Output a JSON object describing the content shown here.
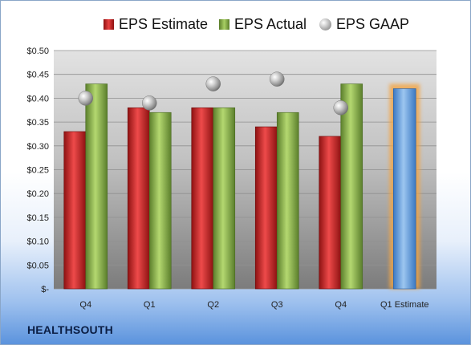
{
  "legend": {
    "estimate": "EPS Estimate",
    "actual": "EPS Actual",
    "gaap": "EPS GAAP"
  },
  "brand": "HEALTHSOUTH",
  "colors": {
    "estimate": "#c8202a",
    "actual": "#8db04a",
    "gaap": "#a8a8a8",
    "forecast": "#5f9bd8",
    "forecast_glow": "#f3a545"
  },
  "chart_data": {
    "type": "bar",
    "categories": [
      "Q4",
      "Q1",
      "Q2",
      "Q3",
      "Q4",
      "Q1 Estimate"
    ],
    "y_tick_labels": [
      "$-",
      "$0.05",
      "$0.10",
      "$0.15",
      "$0.20",
      "$0.25",
      "$0.30",
      "$0.35",
      "$0.40",
      "$0.45",
      "$0.50"
    ],
    "ylim": [
      0,
      0.5
    ],
    "grid": true,
    "legend_position": "top",
    "series": [
      {
        "name": "EPS Estimate",
        "kind": "bar",
        "values": [
          0.33,
          0.38,
          0.38,
          0.34,
          0.32,
          null
        ]
      },
      {
        "name": "EPS Actual",
        "kind": "bar",
        "values": [
          0.43,
          0.37,
          0.38,
          0.37,
          0.43,
          null
        ]
      },
      {
        "name": "EPS GAAP",
        "kind": "marker",
        "values": [
          0.4,
          0.39,
          0.43,
          0.44,
          0.38,
          null
        ]
      }
    ],
    "forecast": {
      "category": "Q1 Estimate",
      "value": 0.42
    }
  }
}
